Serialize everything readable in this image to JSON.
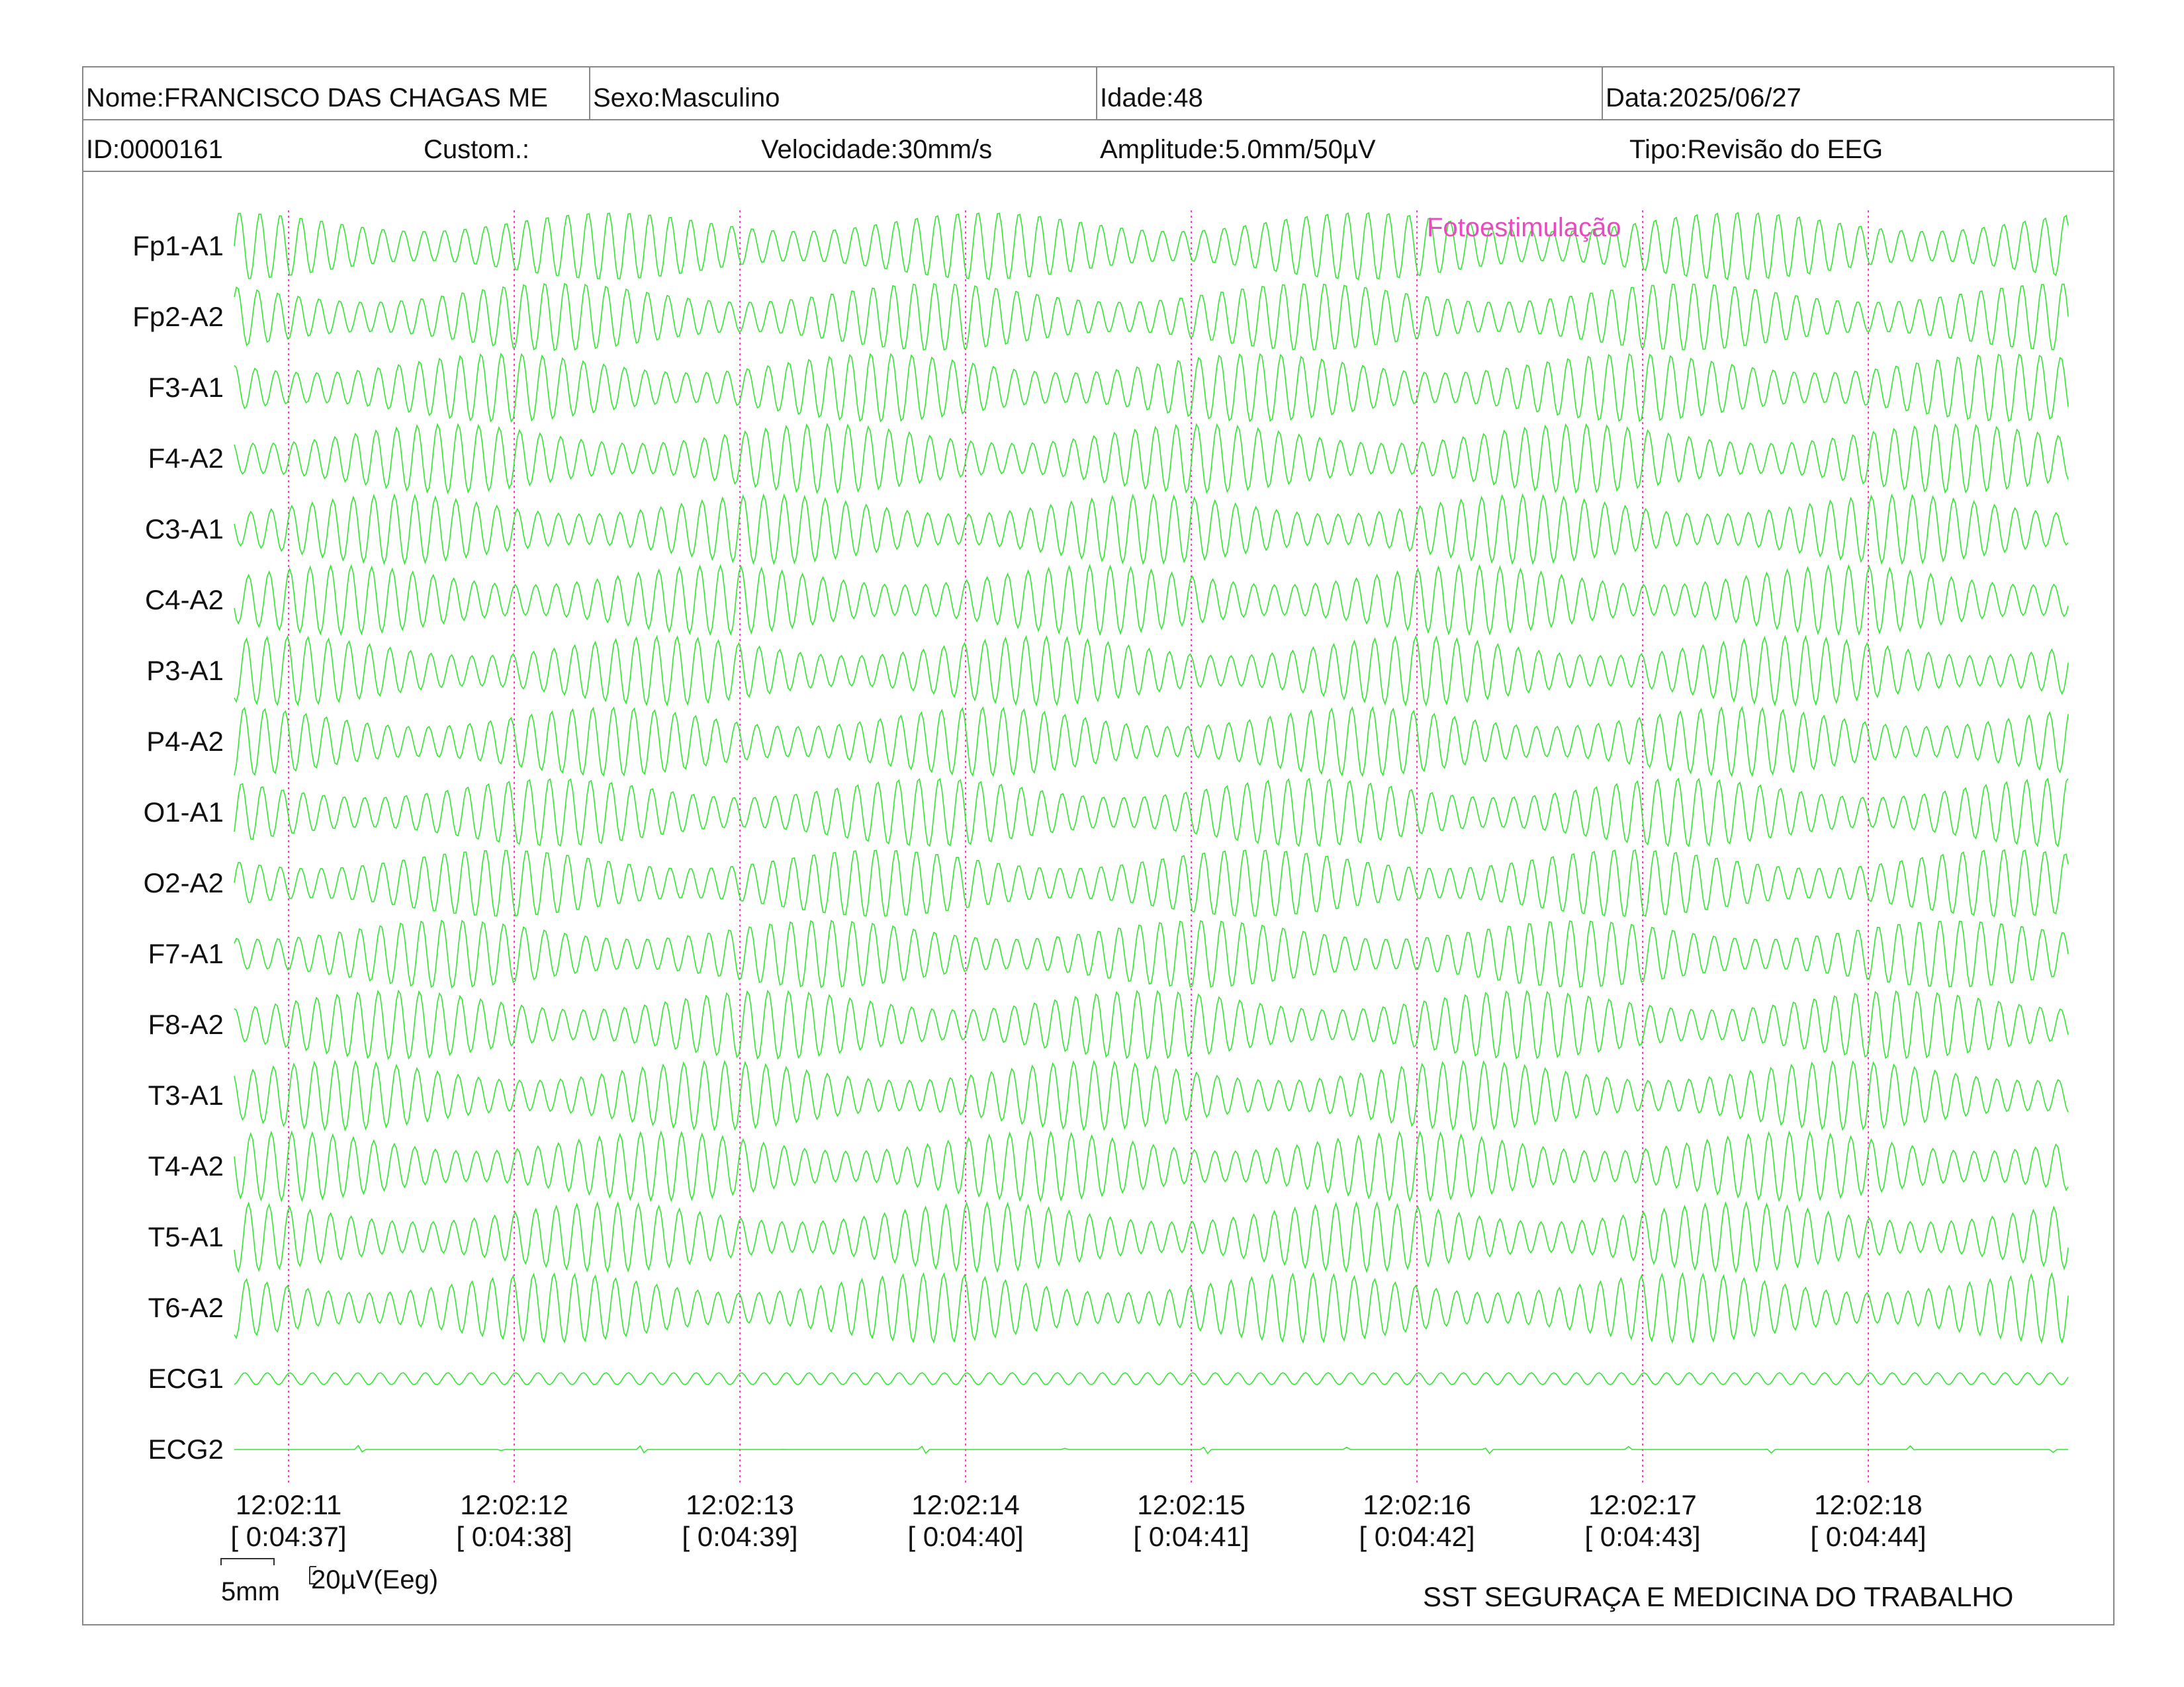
{
  "header": {
    "nome": "Nome:FRANCISCO DAS CHAGAS ME",
    "sexo": "Sexo:Masculino",
    "idade": "Idade:48",
    "data": "Data:2025/06/27",
    "id": "ID:0000161",
    "custom": "Custom.:",
    "velocidade": "Velocidade:30mm/s",
    "amplitude": "Amplitude:5.0mm/50µV",
    "tipo": "Tipo:Revisão do EEG"
  },
  "annotation": "Fotoestimulação",
  "scale": {
    "length": "5mm",
    "amplitude": "20µV(Eeg)"
  },
  "footer": "SST SEGURAÇA E MEDICINA DO TRABALHO",
  "colors": {
    "trace": "#33e633",
    "marker": "#e84bc0",
    "border": "#888888"
  },
  "chart_data": {
    "type": "line",
    "title": "",
    "channels": [
      "Fp1-A1",
      "Fp2-A2",
      "F3-A1",
      "F4-A2",
      "C3-A1",
      "C4-A2",
      "P3-A1",
      "P4-A2",
      "O1-A1",
      "O2-A2",
      "F7-A1",
      "F8-A2",
      "T3-A1",
      "T4-A2",
      "T5-A1",
      "T6-A2",
      "ECG1",
      "ECG2"
    ],
    "time_ticks": [
      {
        "clock": "12:02:11",
        "elapsed": "[ 0:04:37]"
      },
      {
        "clock": "12:02:12",
        "elapsed": "[ 0:04:38]"
      },
      {
        "clock": "12:02:13",
        "elapsed": "[ 0:04:39]"
      },
      {
        "clock": "12:02:14",
        "elapsed": "[ 0:04:40]"
      },
      {
        "clock": "12:02:15",
        "elapsed": "[ 0:04:41]"
      },
      {
        "clock": "12:02:16",
        "elapsed": "[ 0:04:42]"
      },
      {
        "clock": "12:02:17",
        "elapsed": "[ 0:04:43]"
      },
      {
        "clock": "12:02:18",
        "elapsed": "[ 0:04:44]"
      }
    ],
    "time_start_s": 0,
    "time_end_s": 8.1,
    "eeg_wave_hz": 11,
    "ecg1_wave_hz": 10,
    "grid": false
  }
}
